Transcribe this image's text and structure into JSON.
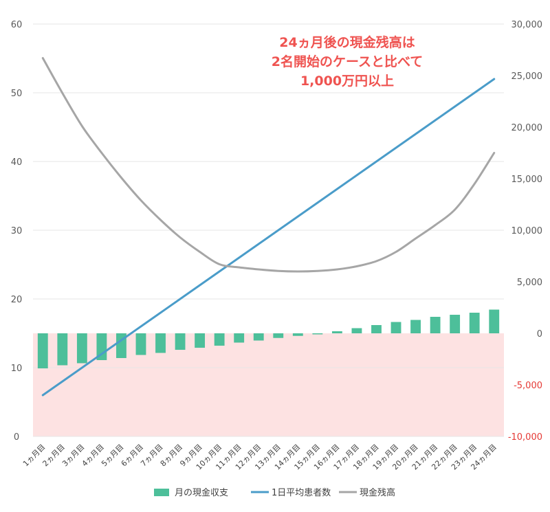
{
  "chart_data": {
    "type": "combo",
    "annotation": [
      "24ヵ月後の現金残高は",
      "2名開始のケースと比べて",
      "1,000万円以上"
    ],
    "categories": [
      "1ヵ月目",
      "2ヵ月目",
      "3ヵ月目",
      "4ヵ月目",
      "5ヵ月目",
      "6ヵ月目",
      "7ヵ月目",
      "8ヵ月目",
      "9ヵ月目",
      "10ヵ月目",
      "11ヵ月目",
      "12ヵ月目",
      "13ヵ月目",
      "14ヵ月目",
      "15ヵ月目",
      "16ヵ月目",
      "17ヵ月目",
      "18ヵ月目",
      "19ヵ月目",
      "20ヵ月目",
      "21ヵ月目",
      "22ヵ月目",
      "23ヵ月目",
      "24ヵ月目"
    ],
    "left_axis": {
      "min": 0,
      "max": 60,
      "ticks": [
        "0",
        "10",
        "20",
        "30",
        "40",
        "50",
        "60"
      ]
    },
    "right_axis": {
      "min": -10000,
      "max": 30000,
      "ticks": [
        "-10,000",
        "-5,000",
        "0",
        "5,000",
        "10,000",
        "15,000",
        "20,000",
        "25,000",
        "30,000"
      ],
      "negative_tick_color": "#e53935"
    },
    "negative_zone_color": "#fde2e2",
    "grid": true,
    "legend_position": "bottom",
    "series": [
      {
        "name": "月の現金収支",
        "type": "bar",
        "axis": "right",
        "color": "#4dbf9a",
        "values": [
          -3400,
          -3100,
          -2900,
          -2600,
          -2400,
          -2100,
          -1900,
          -1600,
          -1400,
          -1200,
          -900,
          -700,
          -450,
          -250,
          -100,
          200,
          500,
          800,
          1100,
          1300,
          1600,
          1800,
          2000,
          2300
        ]
      },
      {
        "name": "1日平均患者数",
        "type": "line",
        "axis": "left",
        "color": "#4a9cc9",
        "values": [
          6,
          8,
          10,
          12,
          14,
          16,
          18,
          20,
          22,
          24,
          26,
          28,
          30,
          32,
          34,
          36,
          38,
          40,
          42,
          44,
          46,
          48,
          50,
          52
        ]
      },
      {
        "name": "現金残高",
        "type": "line",
        "axis": "right",
        "color": "#a6a6a6",
        "values": [
          26700,
          23300,
          20100,
          17500,
          15100,
          12900,
          11000,
          9300,
          7900,
          6700,
          6400,
          6200,
          6050,
          6000,
          6050,
          6200,
          6500,
          7000,
          7900,
          9200,
          10500,
          12000,
          14500,
          17500
        ]
      }
    ]
  }
}
